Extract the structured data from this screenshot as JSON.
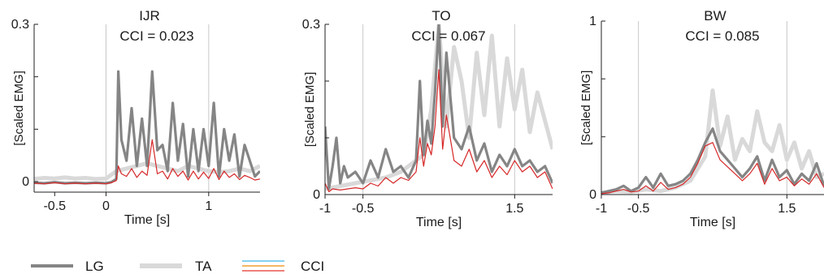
{
  "chart_data": [
    {
      "type": "line",
      "title": "IJR",
      "subtitle": "CCI = 0.023",
      "xlabel": "Time [s]",
      "ylabel": "[Scaled EMG]",
      "xlim": [
        -0.7,
        1.5
      ],
      "ylim": [
        -0.02,
        0.3
      ],
      "xticks": [
        -0.5,
        0,
        1
      ],
      "xtick_labels": [
        "-0.5",
        "0",
        "1"
      ],
      "yticks": [
        0,
        0.3
      ],
      "ytick_labels": [
        "0",
        "0.3"
      ],
      "y_minor_ticks": [
        0.1,
        0.2
      ],
      "vlines": [
        0,
        1
      ],
      "grid": false,
      "series": [
        {
          "name": "TA",
          "color": "#d9d9d9",
          "x": [
            -0.7,
            -0.6,
            -0.5,
            -0.4,
            -0.3,
            -0.2,
            -0.1,
            0,
            0.1,
            0.2,
            0.3,
            0.4,
            0.5,
            0.6,
            0.7,
            0.8,
            0.9,
            1,
            1.1,
            1.2,
            1.3,
            1.4,
            1.5
          ],
          "values": [
            0.005,
            0.007,
            0.006,
            0.008,
            0.006,
            0.007,
            0.005,
            0.006,
            0.02,
            0.025,
            0.03,
            0.035,
            0.03,
            0.025,
            0.02,
            0.03,
            0.025,
            0.02,
            0.018,
            0.02,
            0.025,
            0.02,
            0.03
          ]
        },
        {
          "name": "LG",
          "color": "#858585",
          "x": [
            -0.7,
            -0.6,
            -0.5,
            -0.4,
            -0.3,
            -0.2,
            -0.1,
            0,
            0.05,
            0.1,
            0.12,
            0.15,
            0.2,
            0.25,
            0.3,
            0.35,
            0.4,
            0.45,
            0.5,
            0.55,
            0.6,
            0.65,
            0.7,
            0.75,
            0.8,
            0.85,
            0.9,
            0.95,
            1,
            1.05,
            1.1,
            1.15,
            1.2,
            1.25,
            1.3,
            1.35,
            1.4,
            1.45,
            1.5
          ],
          "values": [
            -0.002,
            -0.003,
            -0.001,
            -0.003,
            -0.002,
            -0.003,
            -0.002,
            -0.003,
            -0.001,
            0.005,
            0.21,
            0.08,
            0.04,
            0.14,
            0.03,
            0.12,
            0.03,
            0.21,
            0.06,
            0.07,
            0.02,
            0.15,
            0.04,
            0.11,
            0.01,
            0.1,
            0.02,
            0.1,
            0.03,
            0.15,
            0.01,
            0.1,
            0.04,
            0.09,
            0.01,
            0.07,
            0.04,
            0.01,
            0.02
          ]
        },
        {
          "name": "CCI",
          "color": "#d62728",
          "x": [
            -0.7,
            -0.6,
            -0.5,
            -0.4,
            -0.3,
            -0.2,
            -0.1,
            0,
            0.05,
            0.1,
            0.12,
            0.15,
            0.2,
            0.25,
            0.3,
            0.35,
            0.4,
            0.45,
            0.5,
            0.55,
            0.6,
            0.65,
            0.7,
            0.75,
            0.8,
            0.85,
            0.9,
            0.95,
            1,
            1.05,
            1.1,
            1.15,
            1.2,
            1.25,
            1.3,
            1.35,
            1.4,
            1.45,
            1.5
          ],
          "values": [
            -0.003,
            -0.004,
            -0.002,
            -0.004,
            -0.003,
            -0.004,
            -0.003,
            -0.004,
            -0.002,
            0.002,
            0.03,
            0.015,
            0.01,
            0.025,
            0.008,
            0.02,
            0.012,
            0.08,
            0.015,
            0.02,
            0.005,
            0.025,
            0.01,
            0.02,
            0.003,
            0.02,
            0.005,
            0.018,
            0.006,
            0.025,
            0.004,
            0.02,
            0.008,
            0.015,
            0.004,
            0.012,
            0.008,
            0.003,
            0.005
          ]
        }
      ]
    },
    {
      "type": "line",
      "title": "TO",
      "subtitle": "CCI = 0.067",
      "xlabel": "Time [s]",
      "ylabel": "[Scaled EMG]",
      "xlim": [
        -1,
        2
      ],
      "ylim": [
        0,
        0.3
      ],
      "xticks": [
        -1,
        -0.5,
        1.5
      ],
      "xtick_labels": [
        "-1",
        "-0.5",
        "1.5"
      ],
      "yticks": [
        0,
        0.3
      ],
      "ytick_labels": [
        "0",
        "0.3"
      ],
      "y_minor_ticks": [
        0.1,
        0.2
      ],
      "vlines": [
        -0.5,
        1.5
      ],
      "grid": false,
      "series": [
        {
          "name": "TA",
          "color": "#d9d9d9",
          "x": [
            -1,
            -0.8,
            -0.6,
            -0.4,
            -0.2,
            0,
            0.2,
            0.3,
            0.4,
            0.5,
            0.6,
            0.7,
            0.8,
            0.9,
            1,
            1.1,
            1.2,
            1.3,
            1.4,
            1.5,
            1.6,
            1.7,
            1.8,
            1.9,
            2
          ],
          "values": [
            0.01,
            0.015,
            0.02,
            0.025,
            0.03,
            0.04,
            0.06,
            0.07,
            0.15,
            0.3,
            0.12,
            0.26,
            0.2,
            0.1,
            0.25,
            0.14,
            0.28,
            0.12,
            0.24,
            0.15,
            0.22,
            0.11,
            0.18,
            0.13,
            0.08
          ]
        },
        {
          "name": "LG",
          "color": "#858585",
          "x": [
            -1,
            -0.95,
            -0.9,
            -0.85,
            -0.8,
            -0.75,
            -0.7,
            -0.6,
            -0.5,
            -0.4,
            -0.3,
            -0.2,
            -0.1,
            0,
            0.1,
            0.2,
            0.25,
            0.3,
            0.35,
            0.4,
            0.45,
            0.5,
            0.55,
            0.6,
            0.7,
            0.8,
            0.9,
            1,
            1.1,
            1.2,
            1.3,
            1.4,
            1.5,
            1.6,
            1.7,
            1.8,
            1.9,
            2
          ],
          "values": [
            0.12,
            0.01,
            0.05,
            0.1,
            0.02,
            0.05,
            0.03,
            0.04,
            0.02,
            0.06,
            0.03,
            0.08,
            0.04,
            0.05,
            0.03,
            0.06,
            0.2,
            0.07,
            0.13,
            0.09,
            0.18,
            0.3,
            0.12,
            0.25,
            0.1,
            0.08,
            0.12,
            0.06,
            0.09,
            0.04,
            0.07,
            0.05,
            0.08,
            0.05,
            0.06,
            0.04,
            0.05,
            0.02
          ]
        },
        {
          "name": "CCI",
          "color": "#d62728",
          "x": [
            -1,
            -0.95,
            -0.9,
            -0.8,
            -0.7,
            -0.6,
            -0.5,
            -0.4,
            -0.3,
            -0.2,
            -0.1,
            0,
            0.1,
            0.2,
            0.25,
            0.3,
            0.35,
            0.4,
            0.45,
            0.5,
            0.55,
            0.6,
            0.7,
            0.8,
            0.9,
            1,
            1.1,
            1.2,
            1.3,
            1.4,
            1.5,
            1.6,
            1.7,
            1.8,
            1.9,
            2
          ],
          "values": [
            0.02,
            0.005,
            0.01,
            0.008,
            0.01,
            0.012,
            0.01,
            0.02,
            0.015,
            0.03,
            0.02,
            0.03,
            0.025,
            0.04,
            0.1,
            0.05,
            0.09,
            0.07,
            0.12,
            0.22,
            0.08,
            0.14,
            0.06,
            0.05,
            0.08,
            0.04,
            0.06,
            0.03,
            0.05,
            0.035,
            0.06,
            0.04,
            0.05,
            0.03,
            0.04,
            0.01
          ]
        }
      ]
    },
    {
      "type": "line",
      "title": "BW",
      "subtitle": "CCI = 0.085",
      "xlabel": "Time [s]",
      "ylabel": "[Scaled EMG]",
      "xlim": [
        -1,
        2
      ],
      "ylim": [
        0,
        1
      ],
      "xticks": [
        -1,
        -0.5,
        1.5
      ],
      "xtick_labels": [
        "-1",
        "-0.5",
        "1.5"
      ],
      "yticks": [
        0,
        1
      ],
      "ytick_labels": [
        "0",
        "1"
      ],
      "y_minor_ticks": [
        0.333,
        0.667
      ],
      "vlines": [
        -0.5,
        1.5
      ],
      "grid": false,
      "series": [
        {
          "name": "TA",
          "color": "#d9d9d9",
          "x": [
            -1,
            -0.8,
            -0.6,
            -0.4,
            -0.2,
            0,
            0.2,
            0.3,
            0.4,
            0.5,
            0.6,
            0.7,
            0.8,
            0.9,
            1,
            1.1,
            1.2,
            1.3,
            1.4,
            1.5,
            1.6,
            1.7,
            1.8,
            1.9,
            2
          ],
          "values": [
            0.01,
            0.02,
            0.015,
            0.03,
            0.02,
            0.04,
            0.08,
            0.15,
            0.22,
            0.6,
            0.28,
            0.45,
            0.2,
            0.32,
            0.25,
            0.48,
            0.3,
            0.25,
            0.4,
            0.2,
            0.3,
            0.15,
            0.25,
            0.1,
            0.12
          ]
        },
        {
          "name": "LG",
          "color": "#858585",
          "x": [
            -1,
            -0.9,
            -0.8,
            -0.7,
            -0.6,
            -0.5,
            -0.4,
            -0.3,
            -0.2,
            -0.1,
            0,
            0.1,
            0.2,
            0.3,
            0.4,
            0.5,
            0.6,
            0.7,
            0.8,
            0.9,
            1,
            1.1,
            1.2,
            1.3,
            1.4,
            1.5,
            1.6,
            1.7,
            1.8,
            1.9,
            2
          ],
          "values": [
            0.01,
            0.02,
            0.03,
            0.05,
            0.02,
            0.04,
            0.1,
            0.04,
            0.12,
            0.05,
            0.06,
            0.08,
            0.12,
            0.2,
            0.3,
            0.38,
            0.25,
            0.2,
            0.15,
            0.1,
            0.15,
            0.22,
            0.08,
            0.2,
            0.1,
            0.14,
            0.06,
            0.12,
            0.08,
            0.18,
            0.05
          ]
        },
        {
          "name": "CCI",
          "color": "#d62728",
          "x": [
            -1,
            -0.9,
            -0.8,
            -0.7,
            -0.6,
            -0.5,
            -0.4,
            -0.3,
            -0.2,
            -0.1,
            0,
            0.1,
            0.2,
            0.3,
            0.4,
            0.5,
            0.6,
            0.7,
            0.8,
            0.9,
            1,
            1.1,
            1.2,
            1.3,
            1.4,
            1.5,
            1.6,
            1.7,
            1.8,
            1.9,
            2
          ],
          "values": [
            0.005,
            0.01,
            0.02,
            0.03,
            0.015,
            0.02,
            0.05,
            0.02,
            0.07,
            0.03,
            0.04,
            0.06,
            0.1,
            0.18,
            0.28,
            0.3,
            0.2,
            0.16,
            0.12,
            0.08,
            0.12,
            0.18,
            0.06,
            0.15,
            0.08,
            0.1,
            0.05,
            0.09,
            0.06,
            0.12,
            0.04
          ]
        }
      ]
    }
  ],
  "legend": {
    "placement": "bottom-left",
    "items": [
      {
        "label": "LG",
        "colors": [
          "#858585"
        ],
        "style": "thick"
      },
      {
        "label": "TA",
        "colors": [
          "#d9d9d9"
        ],
        "style": "thick"
      },
      {
        "label": "CCI",
        "colors": [
          "#5bc0eb",
          "#f0a030",
          "#e8554e"
        ],
        "style": "thin-triple"
      }
    ]
  }
}
